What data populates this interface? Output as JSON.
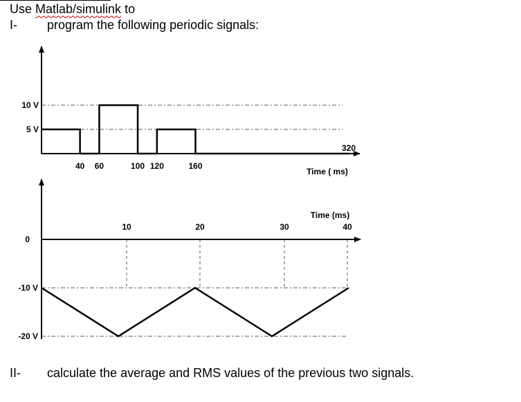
{
  "intro": {
    "prefix": "Use ",
    "tool": "Matlab/simulink",
    "suffix": " to"
  },
  "items": [
    {
      "roman": "I-",
      "text": "program the following periodic signals:"
    },
    {
      "roman": "II-",
      "text": "calculate the average and RMS values of the previous two signals."
    }
  ],
  "chart_data": [
    {
      "type": "line",
      "x": [
        0,
        40,
        40,
        60,
        60,
        100,
        100,
        120,
        120,
        160,
        160,
        320
      ],
      "y": [
        5,
        5,
        0,
        0,
        10,
        10,
        0,
        0,
        5,
        5,
        0,
        0
      ],
      "x_tick_labels": [
        "40",
        "60",
        "100",
        "120",
        "160"
      ],
      "x_end_label": "320",
      "y_tick_labels": [
        "10 V",
        "5 V"
      ],
      "xlabel": "Time ( ms)",
      "xlim": [
        0,
        320
      ],
      "ylim": [
        0,
        10
      ],
      "color": "#000000"
    },
    {
      "type": "line",
      "x": [
        0,
        10,
        20,
        30,
        40
      ],
      "y": [
        -10,
        -20,
        -10,
        -20,
        -10
      ],
      "x_tick_labels": [
        "10",
        "20",
        "30",
        "40"
      ],
      "y_tick_labels": [
        "0",
        "-10 V",
        "-20 V"
      ],
      "xlabel": "Time (ms)",
      "xlim": [
        0,
        40
      ],
      "ylim": [
        -20,
        0
      ],
      "color": "#000000"
    }
  ]
}
